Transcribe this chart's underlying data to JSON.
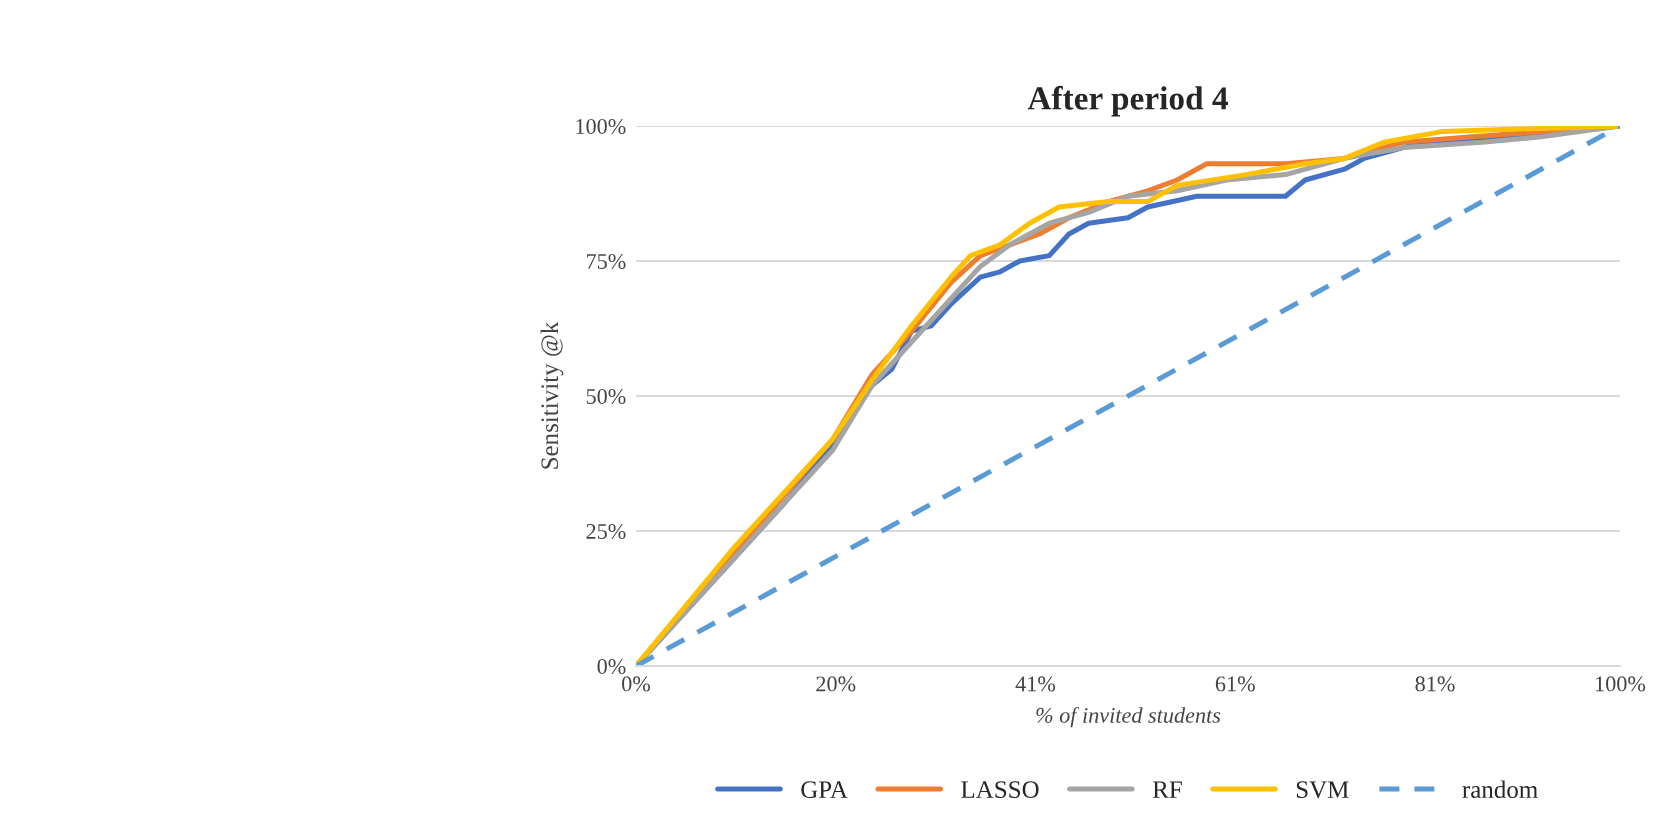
{
  "chart_data": {
    "type": "line",
    "title": "After period 4",
    "xlabel": "% of invited students",
    "ylabel": "Sensitivity @k",
    "xlim": [
      0,
      100
    ],
    "ylim": [
      0,
      100
    ],
    "xticks": [
      {
        "value": 0,
        "label": "0%"
      },
      {
        "value": 20.3,
        "label": "20%"
      },
      {
        "value": 40.6,
        "label": "41%"
      },
      {
        "value": 60.9,
        "label": "61%"
      },
      {
        "value": 81.2,
        "label": "81%"
      },
      {
        "value": 100,
        "label": "100%"
      }
    ],
    "yticks": [
      {
        "value": 0,
        "label": "0%"
      },
      {
        "value": 25,
        "label": "25%"
      },
      {
        "value": 50,
        "label": "50%"
      },
      {
        "value": 75,
        "label": "75%"
      },
      {
        "value": 100,
        "label": "100%"
      }
    ],
    "grid": "y",
    "legend": "bottom",
    "marker": "none",
    "series": [
      {
        "name": "GPA",
        "color": "#4472c4",
        "line_style": "solid",
        "x": [
          0,
          5,
          10,
          15,
          20,
          24,
          26,
          28,
          30,
          32,
          35,
          37,
          39,
          42,
          44,
          46,
          50,
          52,
          57,
          66,
          68,
          72,
          74,
          80,
          88,
          95,
          100
        ],
        "values": [
          0,
          10,
          20,
          30,
          41,
          52,
          55,
          62,
          63,
          67,
          72,
          73,
          75,
          76,
          80,
          82,
          83,
          85,
          87,
          87,
          90,
          92,
          94,
          97,
          98,
          99,
          100
        ]
      },
      {
        "name": "LASSO",
        "color": "#ed7d31",
        "line_style": "solid",
        "x": [
          0,
          10,
          20,
          24,
          28,
          32,
          35,
          38,
          41,
          44,
          48,
          52,
          55,
          58,
          66,
          72,
          78,
          85,
          100
        ],
        "values": [
          0,
          21,
          42,
          54,
          62,
          71,
          76,
          78,
          80,
          83,
          86,
          88,
          90,
          93,
          93,
          94,
          97,
          98,
          100
        ]
      },
      {
        "name": "RF",
        "color": "#a5a5a5",
        "line_style": "solid",
        "x": [
          0,
          10,
          20,
          24,
          28,
          32,
          35,
          38,
          42,
          46,
          50,
          55,
          60,
          66,
          72,
          78,
          86,
          92,
          100
        ],
        "values": [
          0,
          20,
          40,
          52,
          60,
          68,
          74,
          78,
          82,
          84,
          87,
          88,
          90,
          91,
          94,
          96,
          97,
          98,
          100
        ]
      },
      {
        "name": "SVM",
        "color": "#ffc000",
        "line_style": "solid",
        "x": [
          0,
          10,
          20,
          24,
          28,
          32,
          34,
          37,
          40,
          43,
          48,
          52,
          55,
          62,
          68,
          72,
          76,
          82,
          100
        ],
        "values": [
          0,
          22,
          42,
          53,
          63,
          72,
          76,
          78,
          82,
          85,
          86,
          86,
          89,
          91,
          93,
          94,
          97,
          99,
          100
        ]
      },
      {
        "name": "random",
        "color": "#5b9bd5",
        "line_style": "dashed",
        "x": [
          0,
          100
        ],
        "values": [
          0,
          100
        ]
      }
    ]
  }
}
